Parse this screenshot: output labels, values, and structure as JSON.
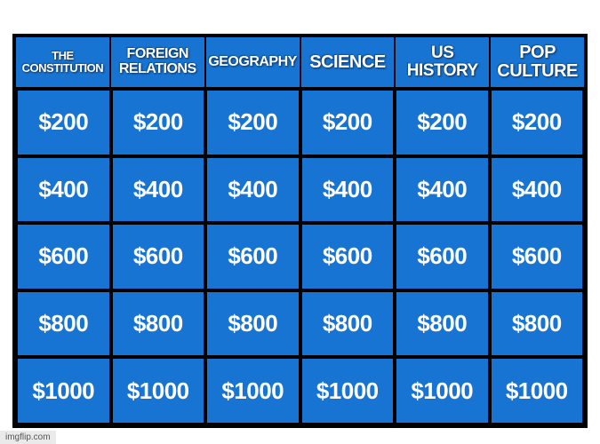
{
  "board": {
    "categories": [
      {
        "label": "THE CONSTITUTION",
        "fontsize": 13
      },
      {
        "label": "FOREIGN RELATIONS",
        "fontsize": 16
      },
      {
        "label": "GEOGRAPHY",
        "fontsize": 16
      },
      {
        "label": "SCIENCE",
        "fontsize": 20
      },
      {
        "label": "US HISTORY",
        "fontsize": 19
      },
      {
        "label": "POP CULTURE",
        "fontsize": 20
      }
    ],
    "values": [
      "$200",
      "$400",
      "$600",
      "$800",
      "$1000"
    ],
    "cell_bg": "#1874d2",
    "cell_text_color": "#ffffff",
    "grid_gap_color": "#000000",
    "board_border_color": "#000000",
    "page_bg": "#ffffff"
  },
  "watermark": "imgflip.com"
}
